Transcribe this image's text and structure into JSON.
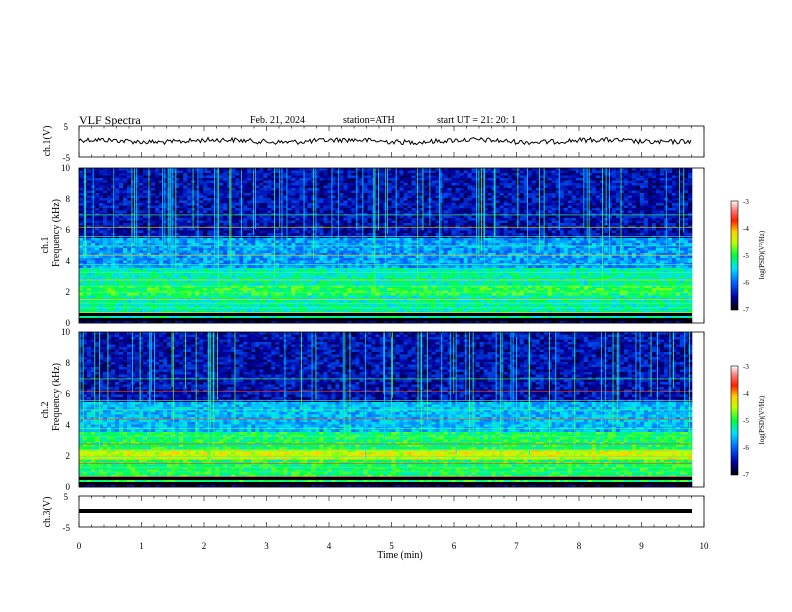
{
  "header": {
    "title": "VLF  Spectra",
    "date": "Feb. 21, 2024",
    "station": "station=ATH",
    "start_ut": "start  UT  =    21: 20: 1"
  },
  "chart_data": [
    {
      "type": "line",
      "ylabel": "ch.1(V)",
      "ylim": [
        -5,
        5
      ],
      "y_ticks": [
        "5",
        "-5"
      ],
      "description_color": "#000000"
    },
    {
      "type": "heatmap",
      "ylabel_top": "ch.1",
      "ylabel": "Frequency  (kHz)",
      "ylim": [
        0,
        10
      ],
      "y_ticks": [
        "10",
        "8",
        "6",
        "4",
        "2",
        "0"
      ],
      "colorbar": {
        "label": "log(PSD)(V²/Hz)",
        "range": [
          -7,
          -3
        ],
        "ticks": [
          "-3",
          "-4",
          "-5",
          "-6",
          "-7"
        ]
      }
    },
    {
      "type": "heatmap",
      "ylabel_top": "ch.2",
      "ylabel": "Frequency  (kHz)",
      "ylim": [
        0,
        10
      ],
      "y_ticks": [
        "10",
        "8",
        "6",
        "4",
        "2",
        "0"
      ],
      "colorbar": {
        "label": "log(PSD)(V²/Hz)",
        "range": [
          -7,
          -3
        ],
        "ticks": [
          "-3",
          "-4",
          "-5",
          "-6",
          "-7"
        ]
      }
    },
    {
      "type": "line",
      "ylabel": "ch.3(V)",
      "ylim": [
        -5,
        5
      ],
      "y_ticks": [
        "5",
        "-5"
      ]
    }
  ],
  "xaxis": {
    "label": "Time  (min)",
    "xlim": [
      0,
      10
    ],
    "ticks": [
      "0",
      "1",
      "2",
      "3",
      "4",
      "5",
      "6",
      "7",
      "8",
      "9",
      "10"
    ]
  }
}
